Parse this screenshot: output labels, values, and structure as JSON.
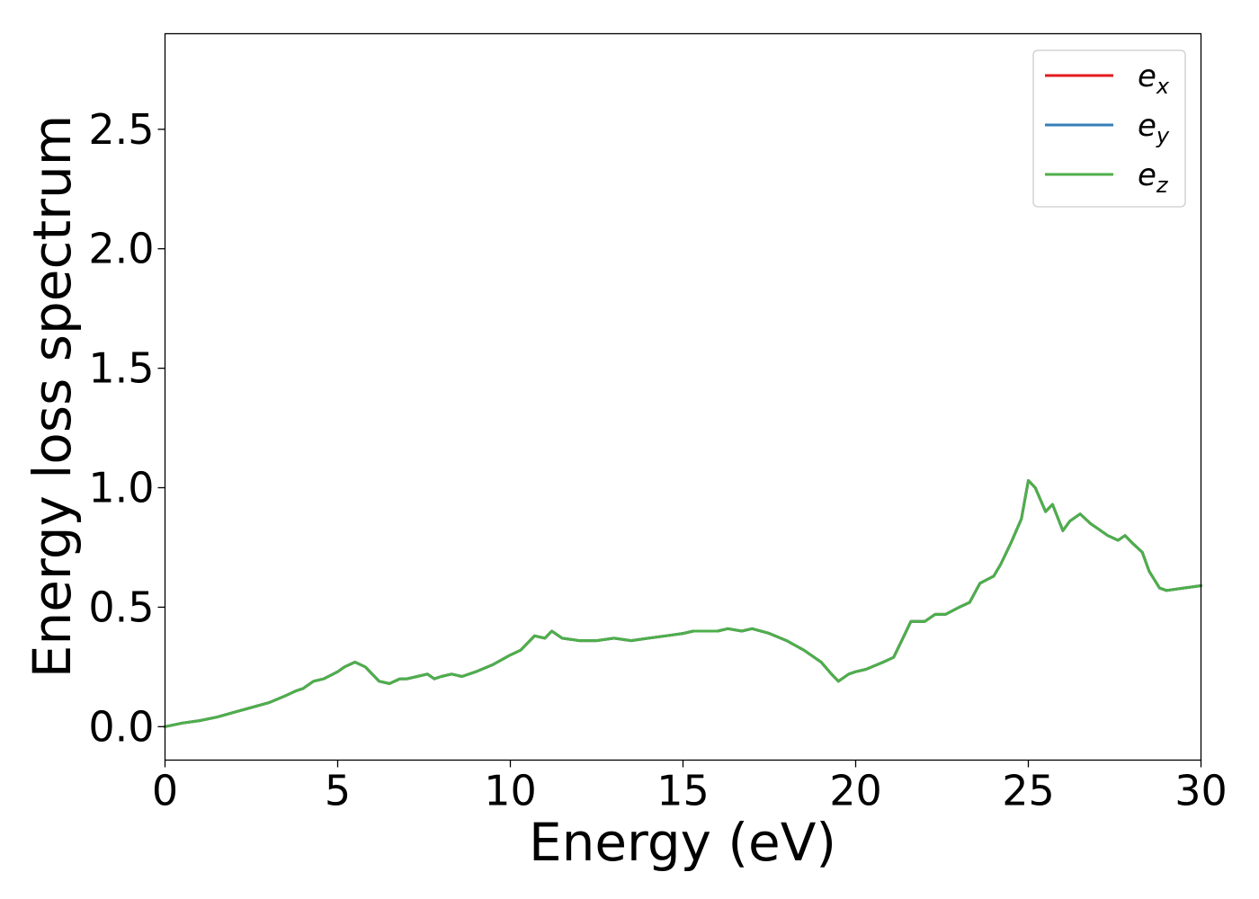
{
  "chart_data": {
    "type": "line",
    "xlabel": "Energy (eV)",
    "ylabel": "Energy loss spectrum",
    "xlim": [
      0,
      30
    ],
    "ylim": [
      -0.14,
      2.9
    ],
    "xticks": [
      0,
      5,
      10,
      15,
      20,
      25,
      30
    ],
    "xtick_labels": [
      "0",
      "5",
      "10",
      "15",
      "20",
      "25",
      "30"
    ],
    "yticks": [
      0.0,
      0.5,
      1.0,
      1.5,
      2.0,
      2.5
    ],
    "ytick_labels": [
      "0.0",
      "0.5",
      "1.0",
      "1.5",
      "2.0",
      "2.5"
    ],
    "grid": false,
    "legend_position": "top-right",
    "series": [
      {
        "name": "e",
        "subscript": "x",
        "color": "#e41a1c",
        "x": [
          0,
          0.5,
          1,
          1.5,
          2,
          2.5,
          3,
          3.5,
          3.8,
          4,
          4.3,
          4.6,
          5,
          5.2,
          5.5,
          5.8,
          6,
          6.2,
          6.5,
          6.8,
          7,
          7.3,
          7.6,
          7.8,
          8,
          8.3,
          8.6,
          9,
          9.5,
          10,
          10.3,
          10.7,
          11,
          11.2,
          11.5,
          12,
          12.5,
          13,
          13.5,
          14,
          14.5,
          15,
          15.3,
          15.6,
          16,
          16.3,
          16.7,
          17,
          17.5,
          18,
          18.5,
          19,
          19.3,
          19.5,
          19.8,
          20,
          20.3,
          20.8,
          21.1,
          21.3,
          21.6,
          22,
          22.3,
          22.6,
          23,
          23.3,
          23.6,
          24,
          24.2,
          24.5,
          24.8,
          25,
          25.2,
          25.5,
          25.7,
          26,
          26.2,
          26.5,
          26.8,
          27,
          27.3,
          27.6,
          27.8,
          28,
          28.3,
          28.5,
          28.8,
          29,
          29.5,
          30
        ],
        "y": [
          0.0,
          0.015,
          0.025,
          0.04,
          0.06,
          0.08,
          0.1,
          0.13,
          0.15,
          0.16,
          0.19,
          0.2,
          0.23,
          0.25,
          0.27,
          0.25,
          0.22,
          0.19,
          0.18,
          0.2,
          0.2,
          0.21,
          0.22,
          0.2,
          0.21,
          0.22,
          0.21,
          0.23,
          0.26,
          0.3,
          0.32,
          0.38,
          0.37,
          0.4,
          0.37,
          0.36,
          0.36,
          0.37,
          0.36,
          0.37,
          0.38,
          0.39,
          0.4,
          0.4,
          0.4,
          0.41,
          0.4,
          0.41,
          0.39,
          0.36,
          0.32,
          0.27,
          0.22,
          0.19,
          0.22,
          0.23,
          0.24,
          0.27,
          0.29,
          0.35,
          0.44,
          0.44,
          0.47,
          0.47,
          0.5,
          0.52,
          0.6,
          0.63,
          0.68,
          0.77,
          0.87,
          1.03,
          1.0,
          0.9,
          0.93,
          0.82,
          0.86,
          0.89,
          0.85,
          0.83,
          0.8,
          0.78,
          0.8,
          0.77,
          0.73,
          0.65,
          0.58,
          0.57,
          0.58,
          0.59
        ]
      },
      {
        "name": "e",
        "subscript": "y",
        "color": "#377eb8",
        "x": [
          0,
          0.5,
          1,
          1.5,
          2,
          2.5,
          3,
          3.5,
          3.8,
          4,
          4.3,
          4.6,
          5,
          5.2,
          5.5,
          5.8,
          6,
          6.2,
          6.5,
          6.8,
          7,
          7.3,
          7.6,
          7.8,
          8,
          8.3,
          8.6,
          9,
          9.5,
          10,
          10.3,
          10.7,
          11,
          11.2,
          11.5,
          12,
          12.5,
          13,
          13.5,
          14,
          14.5,
          15,
          15.3,
          15.6,
          16,
          16.3,
          16.7,
          17,
          17.5,
          18,
          18.5,
          19,
          19.3,
          19.5,
          19.8,
          20,
          20.3,
          20.8,
          21.1,
          21.3,
          21.6,
          22,
          22.3,
          22.6,
          23,
          23.3,
          23.6,
          24,
          24.2,
          24.5,
          24.8,
          25,
          25.2,
          25.5,
          25.7,
          26,
          26.2,
          26.5,
          26.8,
          27,
          27.3,
          27.6,
          27.8,
          28,
          28.3,
          28.5,
          28.8,
          29,
          29.5,
          30
        ],
        "y": [
          0.0,
          0.015,
          0.025,
          0.04,
          0.06,
          0.08,
          0.1,
          0.13,
          0.15,
          0.16,
          0.19,
          0.2,
          0.23,
          0.25,
          0.27,
          0.25,
          0.22,
          0.19,
          0.18,
          0.2,
          0.2,
          0.21,
          0.22,
          0.2,
          0.21,
          0.22,
          0.21,
          0.23,
          0.26,
          0.3,
          0.32,
          0.38,
          0.37,
          0.4,
          0.37,
          0.36,
          0.36,
          0.37,
          0.36,
          0.37,
          0.38,
          0.39,
          0.4,
          0.4,
          0.4,
          0.41,
          0.4,
          0.41,
          0.39,
          0.36,
          0.32,
          0.27,
          0.22,
          0.19,
          0.22,
          0.23,
          0.24,
          0.27,
          0.29,
          0.35,
          0.44,
          0.44,
          0.47,
          0.47,
          0.5,
          0.52,
          0.6,
          0.63,
          0.68,
          0.77,
          0.87,
          1.03,
          1.0,
          0.9,
          0.93,
          0.82,
          0.86,
          0.89,
          0.85,
          0.83,
          0.8,
          0.78,
          0.8,
          0.77,
          0.73,
          0.65,
          0.58,
          0.57,
          0.58,
          0.59
        ]
      },
      {
        "name": "e",
        "subscript": "z",
        "color": "#4daf4a",
        "x": [
          0,
          0.5,
          1,
          1.5,
          2,
          2.5,
          3,
          3.5,
          3.8,
          4,
          4.3,
          4.6,
          5,
          5.2,
          5.5,
          5.8,
          6,
          6.2,
          6.5,
          6.8,
          7,
          7.3,
          7.6,
          7.8,
          8,
          8.3,
          8.6,
          9,
          9.5,
          10,
          10.3,
          10.7,
          11,
          11.2,
          11.5,
          12,
          12.5,
          13,
          13.5,
          14,
          14.5,
          15,
          15.3,
          15.6,
          16,
          16.3,
          16.7,
          17,
          17.5,
          18,
          18.5,
          19,
          19.3,
          19.5,
          19.8,
          20,
          20.3,
          20.8,
          21.1,
          21.3,
          21.6,
          22,
          22.3,
          22.6,
          23,
          23.3,
          23.6,
          24,
          24.2,
          24.5,
          24.8,
          25,
          25.2,
          25.5,
          25.7,
          26,
          26.2,
          26.5,
          26.8,
          27,
          27.3,
          27.6,
          27.8,
          28,
          28.3,
          28.5,
          28.8,
          29,
          29.5,
          30
        ],
        "y": [
          0.0,
          0.015,
          0.025,
          0.04,
          0.06,
          0.08,
          0.1,
          0.13,
          0.15,
          0.16,
          0.19,
          0.2,
          0.23,
          0.25,
          0.27,
          0.25,
          0.22,
          0.19,
          0.18,
          0.2,
          0.2,
          0.21,
          0.22,
          0.2,
          0.21,
          0.22,
          0.21,
          0.23,
          0.26,
          0.3,
          0.32,
          0.38,
          0.37,
          0.4,
          0.37,
          0.36,
          0.36,
          0.37,
          0.36,
          0.37,
          0.38,
          0.39,
          0.4,
          0.4,
          0.4,
          0.41,
          0.4,
          0.41,
          0.39,
          0.36,
          0.32,
          0.27,
          0.22,
          0.19,
          0.22,
          0.23,
          0.24,
          0.27,
          0.29,
          0.35,
          0.44,
          0.44,
          0.47,
          0.47,
          0.5,
          0.52,
          0.6,
          0.63,
          0.68,
          0.77,
          0.87,
          1.03,
          1.0,
          0.9,
          0.93,
          0.82,
          0.86,
          0.89,
          0.85,
          0.83,
          0.8,
          0.78,
          0.8,
          0.77,
          0.73,
          0.65,
          0.58,
          0.57,
          0.58,
          0.59
        ]
      }
    ]
  }
}
